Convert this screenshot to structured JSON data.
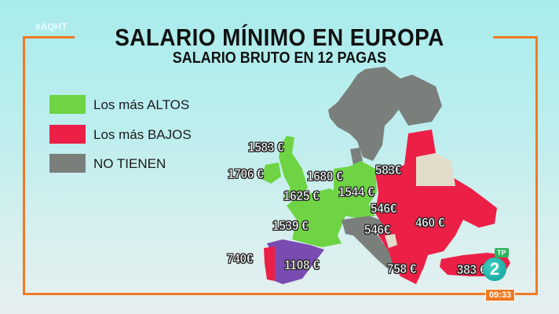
{
  "hashtag": "#AQHT",
  "title": "SALARIO MÍNIMO EN EUROPA",
  "subtitle": "SALARIO BRUTO EN 12 PAGAS",
  "legend": [
    {
      "label": "Los más ALTOS",
      "color": "#6ed444"
    },
    {
      "label": "Los más BAJOS",
      "color": "#ec1f47"
    },
    {
      "label": "NO TIENEN",
      "color": "#7a7f7c"
    }
  ],
  "colors": {
    "spain": "#7a4bb0",
    "no_data": "#e2dccb",
    "frame": "#f07a22"
  },
  "map_labels": {
    "uk": "1583 €",
    "ireland": "1706 €",
    "netherlands": "1680 €",
    "belgium": "1625 €",
    "germany": "1544 €",
    "poland": "583€",
    "hungary": "546€",
    "croatia": "546€",
    "romania": "460 €",
    "france": "1539 €",
    "portugal": "740€",
    "spain": "1108 €",
    "greece": "758 €",
    "turkey": "383 €"
  },
  "channel": {
    "logo": "2",
    "badge": "TP",
    "clock": "09:33"
  }
}
